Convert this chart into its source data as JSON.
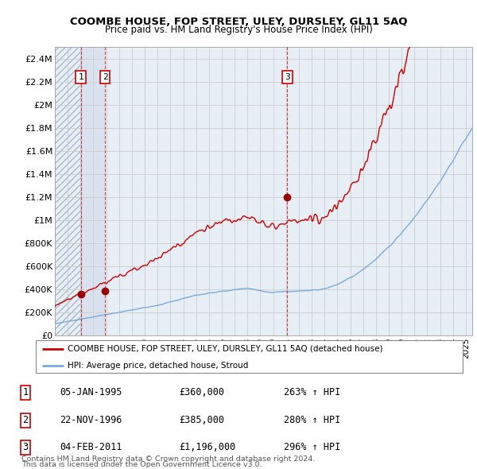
{
  "title": "COOMBE HOUSE, FOP STREET, ULEY, DURSLEY, GL11 5AQ",
  "subtitle": "Price paid vs. HM Land Registry's House Price Index (HPI)",
  "ylabel_ticks": [
    "£0",
    "£200K",
    "£400K",
    "£600K",
    "£800K",
    "£1M",
    "£1.2M",
    "£1.4M",
    "£1.6M",
    "£1.8M",
    "£2M",
    "£2.2M",
    "£2.4M"
  ],
  "ytick_vals": [
    0,
    200000,
    400000,
    600000,
    800000,
    1000000,
    1200000,
    1400000,
    1600000,
    1800000,
    2000000,
    2200000,
    2400000
  ],
  "xmin": 1993.0,
  "xmax": 2025.5,
  "ymin": 0,
  "ymax": 2500000,
  "sale_dates": [
    1995.02,
    1996.9,
    2011.09
  ],
  "sale_prices": [
    360000,
    385000,
    1196000
  ],
  "sale_labels": [
    "1",
    "2",
    "3"
  ],
  "red_line_color": "#cc0000",
  "blue_line_color": "#7aaadd",
  "sale_dot_color": "#990000",
  "bg_color": "#e8eef5",
  "hatched_bg_color": "#ccd8e8",
  "grid_color": "#cccccc",
  "legend_line1": "COOMBE HOUSE, FOP STREET, ULEY, DURSLEY, GL11 5AQ (detached house)",
  "legend_line2": "HPI: Average price, detached house, Stroud",
  "table_rows": [
    [
      "1",
      "05-JAN-1995",
      "£360,000",
      "263% ↑ HPI"
    ],
    [
      "2",
      "22-NOV-1996",
      "£385,000",
      "280% ↑ HPI"
    ],
    [
      "3",
      "04-FEB-2011",
      "£1,196,000",
      "296% ↑ HPI"
    ]
  ],
  "footnote1": "Contains HM Land Registry data © Crown copyright and database right 2024.",
  "footnote2": "This data is licensed under the Open Government Licence v3.0."
}
